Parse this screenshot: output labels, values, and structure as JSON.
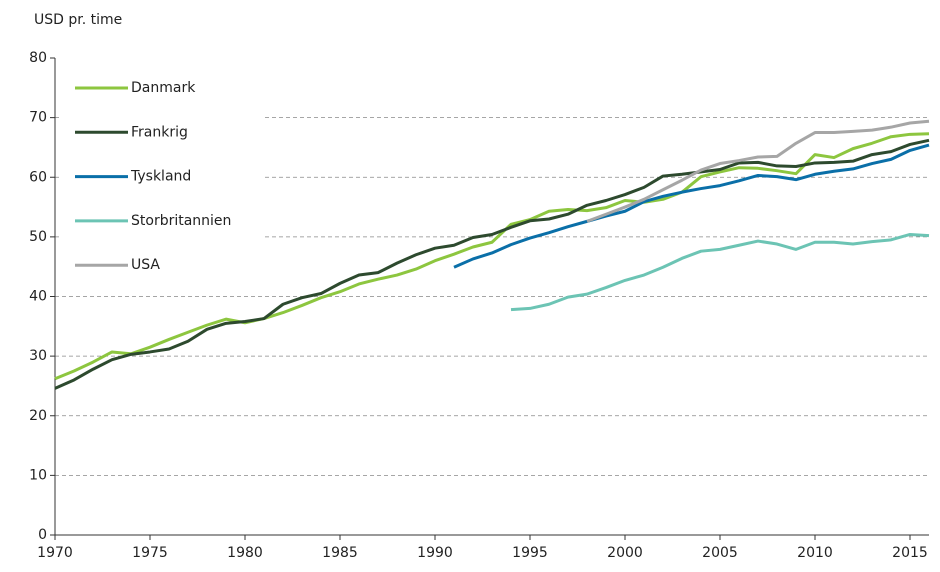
{
  "chart_data": {
    "type": "line",
    "y_axis_label": "USD pr. time",
    "x": [
      1970,
      1971,
      1972,
      1973,
      1974,
      1975,
      1976,
      1977,
      1978,
      1979,
      1980,
      1981,
      1982,
      1983,
      1984,
      1985,
      1986,
      1987,
      1988,
      1989,
      1990,
      1991,
      1992,
      1993,
      1994,
      1995,
      1996,
      1997,
      1998,
      1999,
      2000,
      2001,
      2002,
      2003,
      2004,
      2005,
      2006,
      2007,
      2008,
      2009,
      2010,
      2011,
      2012,
      2013,
      2014,
      2015,
      2016
    ],
    "series": [
      {
        "name": "Danmark",
        "color": "#8dc63f",
        "values": [
          26.2,
          27.5,
          29,
          30.7,
          30.4,
          31.5,
          32.8,
          34,
          35.2,
          36.2,
          35.6,
          36.3,
          37.3,
          38.5,
          39.8,
          40.8,
          42.1,
          42.9,
          43.6,
          44.6,
          46,
          47.1,
          48.3,
          49.1,
          52.1,
          52.9,
          54.3,
          54.6,
          54.4,
          54.9,
          56.1,
          55.8,
          56.3,
          57.5,
          60.1,
          60.9,
          61.6,
          61.5,
          61.1,
          60.6,
          63.8,
          63.3,
          64.8,
          65.7,
          66.8,
          67.2,
          67.3
        ]
      },
      {
        "name": "Frankrig",
        "color": "#2d4a2e",
        "values": [
          24.6,
          26,
          27.8,
          29.4,
          30.3,
          30.7,
          31.2,
          32.5,
          34.5,
          35.5,
          35.8,
          36.3,
          38.7,
          39.8,
          40.5,
          42.2,
          43.6,
          44,
          45.6,
          47,
          48.1,
          48.6,
          49.9,
          50.4,
          51.6,
          52.7,
          53,
          53.8,
          55.3,
          56.1,
          57.1,
          58.3,
          60.2,
          60.5,
          60.9,
          61.3,
          62.4,
          62.5,
          61.9,
          61.8,
          62.4,
          62.5,
          62.7,
          63.8,
          64.3,
          65.5,
          66.2
        ]
      },
      {
        "name": "Tyskland",
        "color": "#0a6fa8",
        "values": [
          null,
          null,
          null,
          null,
          null,
          null,
          null,
          null,
          null,
          null,
          null,
          null,
          null,
          null,
          null,
          null,
          null,
          null,
          null,
          null,
          null,
          44.9,
          46.3,
          47.3,
          48.7,
          49.8,
          50.7,
          51.7,
          52.6,
          53.5,
          54.3,
          55.9,
          56.8,
          57.5,
          58.1,
          58.6,
          59.4,
          60.3,
          60.1,
          59.6,
          60.5,
          61,
          61.4,
          62.3,
          63,
          64.5,
          65.4
        ]
      },
      {
        "name": "Storbritannien",
        "color": "#6cc4b4",
        "values": [
          null,
          null,
          null,
          null,
          null,
          null,
          null,
          null,
          null,
          null,
          null,
          null,
          null,
          null,
          null,
          null,
          null,
          null,
          null,
          null,
          null,
          null,
          null,
          null,
          37.8,
          38,
          38.7,
          39.9,
          40.4,
          41.5,
          42.7,
          43.6,
          44.9,
          46.4,
          47.6,
          47.9,
          48.6,
          49.3,
          48.8,
          47.9,
          49.1,
          49.1,
          48.8,
          49.2,
          49.5,
          50.4,
          50.2
        ]
      },
      {
        "name": "USA",
        "color": "#a6a6a6",
        "values": [
          null,
          null,
          null,
          null,
          null,
          null,
          null,
          null,
          null,
          null,
          null,
          null,
          null,
          null,
          null,
          null,
          null,
          null,
          null,
          null,
          null,
          null,
          null,
          null,
          null,
          null,
          null,
          null,
          52.6,
          53.8,
          55,
          56.3,
          57.9,
          59.5,
          61.2,
          62.3,
          62.8,
          63.4,
          63.5,
          65.7,
          67.5,
          67.5,
          67.7,
          67.9,
          68.4,
          69.1,
          69.4
        ]
      }
    ],
    "xlim": [
      1970,
      2016
    ],
    "xticks": [
      1970,
      1975,
      1980,
      1985,
      1990,
      1995,
      2000,
      2005,
      2010,
      2015
    ],
    "ylim": [
      0,
      80
    ],
    "yticks": [
      0,
      10,
      20,
      30,
      40,
      50,
      60,
      70,
      80
    ],
    "grid": true,
    "legend": "upper-left"
  }
}
